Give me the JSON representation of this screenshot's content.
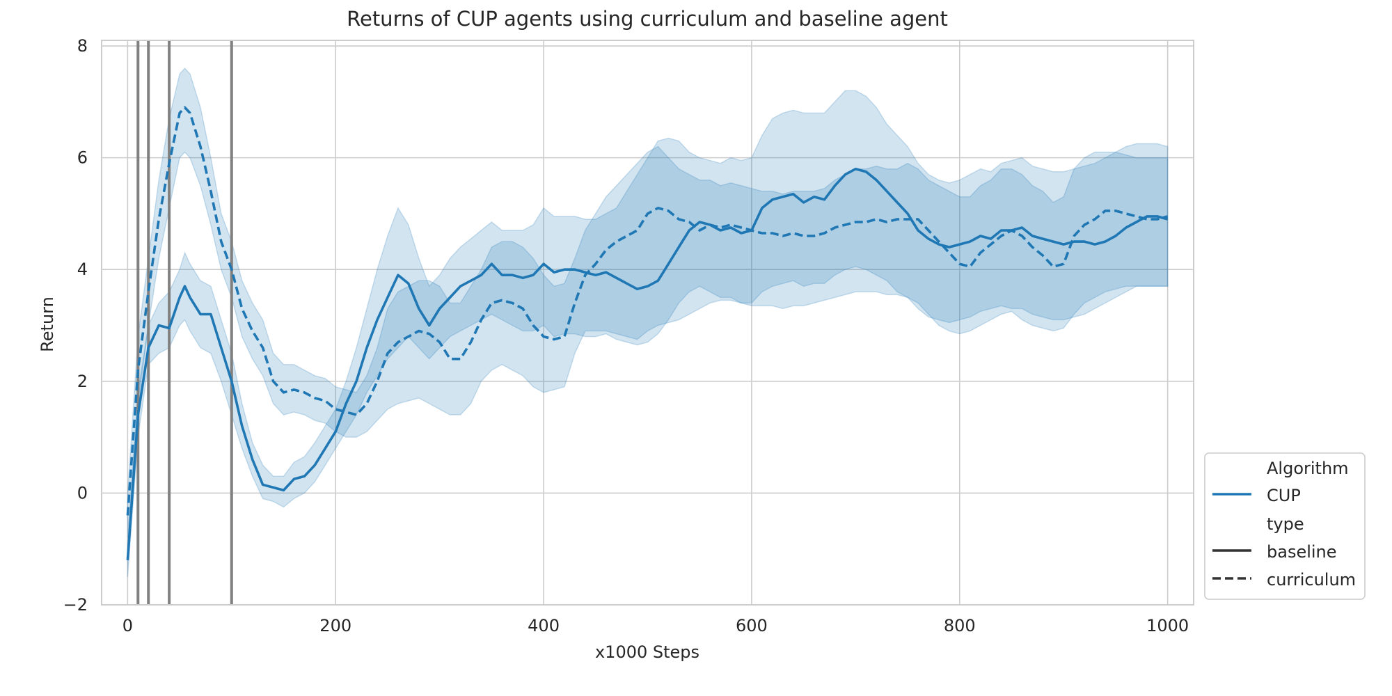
{
  "chart_data": {
    "type": "line",
    "title": "Returns of CUP agents using curriculum and baseline agent",
    "xlabel": "x1000 Steps",
    "ylabel": "Return",
    "xlim": [
      -25,
      1025
    ],
    "ylim": [
      -2,
      8.1
    ],
    "xticks": [
      0,
      200,
      400,
      600,
      800,
      1000
    ],
    "yticks": [
      -2,
      0,
      2,
      4,
      6,
      8
    ],
    "grid": true,
    "legend_placement": "lower-right-outside",
    "color": "#1f77b4",
    "curriculum_markers_x": [
      10,
      20,
      40,
      100
    ],
    "legend": {
      "hue_title": "Algorithm",
      "hue_entries": [
        "CUP"
      ],
      "style_title": "type",
      "style_entries": [
        "baseline",
        "curriculum"
      ]
    },
    "series": [
      {
        "name": "baseline",
        "line_style": "solid",
        "x": [
          0,
          10,
          20,
          30,
          40,
          50,
          55,
          60,
          70,
          80,
          90,
          100,
          110,
          120,
          130,
          140,
          150,
          160,
          170,
          180,
          190,
          200,
          210,
          220,
          230,
          240,
          250,
          260,
          270,
          280,
          290,
          300,
          310,
          320,
          330,
          340,
          350,
          360,
          370,
          380,
          390,
          400,
          410,
          420,
          430,
          440,
          450,
          460,
          470,
          480,
          490,
          500,
          510,
          520,
          530,
          540,
          550,
          560,
          570,
          580,
          590,
          600,
          610,
          620,
          630,
          640,
          650,
          660,
          670,
          680,
          690,
          700,
          710,
          720,
          730,
          740,
          750,
          760,
          770,
          780,
          790,
          800,
          810,
          820,
          830,
          840,
          850,
          860,
          870,
          880,
          890,
          900,
          910,
          920,
          930,
          940,
          950,
          960,
          970,
          980,
          990,
          1000
        ],
        "y": [
          -1.2,
          1.4,
          2.6,
          3.0,
          2.95,
          3.5,
          3.7,
          3.5,
          3.2,
          3.2,
          2.6,
          2.0,
          1.2,
          0.6,
          0.15,
          0.1,
          0.05,
          0.25,
          0.3,
          0.5,
          0.8,
          1.1,
          1.6,
          2.0,
          2.6,
          3.1,
          3.5,
          3.9,
          3.75,
          3.3,
          3.0,
          3.3,
          3.5,
          3.7,
          3.8,
          3.9,
          4.1,
          3.9,
          3.9,
          3.85,
          3.9,
          4.1,
          3.95,
          4.0,
          4.0,
          3.95,
          3.9,
          3.95,
          3.85,
          3.75,
          3.65,
          3.7,
          3.8,
          4.1,
          4.4,
          4.7,
          4.85,
          4.8,
          4.7,
          4.75,
          4.65,
          4.7,
          5.1,
          5.25,
          5.3,
          5.35,
          5.2,
          5.3,
          5.25,
          5.5,
          5.7,
          5.8,
          5.75,
          5.6,
          5.4,
          5.2,
          5.0,
          4.7,
          4.55,
          4.45,
          4.4,
          4.45,
          4.5,
          4.6,
          4.55,
          4.7,
          4.7,
          4.75,
          4.6,
          4.55,
          4.5,
          4.45,
          4.5,
          4.5,
          4.45,
          4.5,
          4.6,
          4.75,
          4.85,
          4.95,
          4.95,
          4.9
        ],
        "band_lower": [
          -1.5,
          1.0,
          2.3,
          2.5,
          2.6,
          3.0,
          3.1,
          2.9,
          2.6,
          2.5,
          2.0,
          1.4,
          0.8,
          0.3,
          -0.1,
          -0.15,
          -0.25,
          -0.1,
          0.0,
          0.2,
          0.5,
          0.8,
          1.1,
          1.4,
          1.8,
          2.1,
          2.4,
          2.6,
          2.8,
          2.6,
          2.4,
          2.6,
          2.8,
          2.9,
          3.0,
          3.1,
          3.2,
          3.1,
          3.0,
          2.9,
          2.9,
          3.0,
          2.8,
          2.85,
          2.85,
          2.8,
          2.8,
          2.85,
          2.75,
          2.7,
          2.65,
          2.7,
          2.85,
          3.1,
          3.4,
          3.6,
          3.7,
          3.6,
          3.5,
          3.5,
          3.4,
          3.4,
          3.6,
          3.7,
          3.75,
          3.8,
          3.7,
          3.75,
          3.75,
          3.9,
          4.0,
          4.05,
          4.0,
          3.9,
          3.8,
          3.6,
          3.5,
          3.3,
          3.15,
          3.1,
          3.05,
          3.1,
          3.15,
          3.25,
          3.3,
          3.35,
          3.3,
          3.3,
          3.2,
          3.15,
          3.1,
          3.1,
          3.15,
          3.2,
          3.3,
          3.4,
          3.5,
          3.6,
          3.7,
          3.7,
          3.7,
          3.7
        ],
        "band_upper": [
          -0.9,
          1.8,
          3.0,
          3.4,
          3.6,
          4.0,
          4.3,
          4.1,
          3.8,
          3.7,
          3.1,
          2.5,
          1.6,
          0.9,
          0.5,
          0.3,
          0.3,
          0.55,
          0.65,
          0.9,
          1.2,
          1.5,
          2.0,
          2.6,
          3.3,
          4.0,
          4.6,
          5.1,
          4.8,
          4.2,
          3.7,
          3.9,
          4.2,
          4.4,
          4.55,
          4.7,
          4.85,
          4.7,
          4.7,
          4.7,
          4.8,
          5.1,
          4.95,
          4.95,
          4.95,
          4.9,
          4.9,
          5.0,
          5.1,
          5.4,
          5.7,
          6.0,
          6.3,
          6.35,
          6.3,
          6.1,
          6.0,
          5.95,
          5.9,
          6.0,
          5.95,
          6.0,
          6.4,
          6.7,
          6.8,
          6.85,
          6.8,
          6.8,
          6.8,
          7.0,
          7.2,
          7.2,
          7.1,
          6.9,
          6.6,
          6.4,
          6.2,
          5.9,
          5.7,
          5.6,
          5.55,
          5.6,
          5.7,
          5.8,
          5.75,
          5.9,
          5.95,
          6.0,
          5.85,
          5.8,
          5.75,
          5.75,
          5.8,
          5.85,
          5.9,
          6.0,
          6.1,
          6.2,
          6.25,
          6.25,
          6.25,
          6.2
        ]
      },
      {
        "name": "curriculum",
        "line_style": "dashed",
        "x": [
          0,
          10,
          20,
          30,
          40,
          50,
          55,
          60,
          70,
          80,
          90,
          100,
          110,
          120,
          130,
          140,
          150,
          160,
          170,
          180,
          190,
          200,
          210,
          220,
          230,
          240,
          250,
          260,
          270,
          280,
          290,
          300,
          310,
          320,
          330,
          340,
          350,
          360,
          370,
          380,
          390,
          400,
          410,
          420,
          430,
          440,
          450,
          460,
          470,
          480,
          490,
          500,
          510,
          520,
          530,
          540,
          550,
          560,
          570,
          580,
          590,
          600,
          610,
          620,
          630,
          640,
          650,
          660,
          670,
          680,
          690,
          700,
          710,
          720,
          730,
          740,
          750,
          760,
          770,
          780,
          790,
          800,
          810,
          820,
          830,
          840,
          850,
          860,
          870,
          880,
          890,
          900,
          910,
          920,
          930,
          940,
          950,
          960,
          970,
          980,
          990,
          1000
        ],
        "y": [
          -0.4,
          2.2,
          3.6,
          4.9,
          5.9,
          6.8,
          6.9,
          6.8,
          6.2,
          5.4,
          4.5,
          4.0,
          3.3,
          2.9,
          2.6,
          2.0,
          1.8,
          1.85,
          1.8,
          1.7,
          1.65,
          1.5,
          1.45,
          1.4,
          1.6,
          2.0,
          2.5,
          2.7,
          2.8,
          2.9,
          2.85,
          2.7,
          2.4,
          2.4,
          2.7,
          3.1,
          3.4,
          3.45,
          3.4,
          3.3,
          3.0,
          2.8,
          2.75,
          2.8,
          3.4,
          3.9,
          4.1,
          4.35,
          4.5,
          4.6,
          4.7,
          5.0,
          5.1,
          5.05,
          4.9,
          4.85,
          4.7,
          4.8,
          4.75,
          4.8,
          4.75,
          4.7,
          4.65,
          4.65,
          4.6,
          4.65,
          4.6,
          4.6,
          4.65,
          4.75,
          4.8,
          4.85,
          4.85,
          4.9,
          4.85,
          4.9,
          4.9,
          4.9,
          4.7,
          4.5,
          4.3,
          4.1,
          4.05,
          4.3,
          4.45,
          4.6,
          4.7,
          4.6,
          4.4,
          4.25,
          4.05,
          4.1,
          4.6,
          4.8,
          4.9,
          5.05,
          5.05,
          5.0,
          4.95,
          4.9,
          4.9,
          4.95
        ],
        "band_lower": [
          -0.8,
          1.6,
          3.0,
          4.2,
          5.1,
          6.0,
          6.1,
          6.0,
          5.5,
          4.8,
          4.0,
          3.5,
          2.8,
          2.4,
          2.1,
          1.6,
          1.4,
          1.45,
          1.4,
          1.3,
          1.25,
          1.1,
          1.0,
          1.0,
          1.1,
          1.3,
          1.5,
          1.6,
          1.65,
          1.7,
          1.6,
          1.5,
          1.4,
          1.4,
          1.6,
          2.0,
          2.2,
          2.3,
          2.2,
          2.1,
          1.9,
          1.8,
          1.85,
          1.9,
          2.5,
          2.9,
          2.9,
          2.9,
          2.85,
          2.8,
          2.75,
          2.9,
          3.0,
          3.05,
          3.1,
          3.2,
          3.3,
          3.4,
          3.45,
          3.45,
          3.4,
          3.35,
          3.35,
          3.35,
          3.3,
          3.35,
          3.35,
          3.4,
          3.45,
          3.5,
          3.55,
          3.6,
          3.6,
          3.6,
          3.55,
          3.55,
          3.5,
          3.4,
          3.2,
          3.0,
          2.9,
          2.85,
          2.9,
          3.0,
          3.1,
          3.2,
          3.25,
          3.1,
          3.0,
          2.95,
          2.9,
          2.95,
          3.2,
          3.4,
          3.5,
          3.6,
          3.65,
          3.7,
          3.7,
          3.7,
          3.7,
          3.7
        ],
        "band_upper": [
          0.0,
          2.8,
          4.2,
          5.6,
          6.7,
          7.5,
          7.6,
          7.5,
          6.9,
          6.0,
          5.0,
          4.5,
          3.8,
          3.4,
          3.1,
          2.5,
          2.3,
          2.3,
          2.2,
          2.1,
          2.05,
          1.9,
          1.85,
          1.8,
          2.1,
          2.6,
          3.3,
          3.6,
          3.7,
          3.8,
          3.8,
          3.7,
          3.4,
          3.4,
          3.7,
          4.0,
          4.4,
          4.5,
          4.5,
          4.4,
          4.2,
          3.9,
          3.7,
          3.75,
          4.2,
          4.7,
          5.0,
          5.3,
          5.5,
          5.7,
          5.9,
          6.1,
          6.2,
          6.0,
          5.8,
          5.7,
          5.6,
          5.6,
          5.5,
          5.55,
          5.5,
          5.45,
          5.4,
          5.4,
          5.35,
          5.4,
          5.4,
          5.4,
          5.45,
          5.6,
          5.7,
          5.8,
          5.8,
          5.85,
          5.8,
          5.8,
          5.9,
          5.8,
          5.6,
          5.5,
          5.4,
          5.3,
          5.3,
          5.5,
          5.6,
          5.8,
          5.8,
          5.7,
          5.5,
          5.4,
          5.2,
          5.3,
          5.8,
          6.0,
          6.1,
          6.1,
          6.1,
          6.05,
          6.0,
          6.0,
          6.0,
          6.0
        ]
      }
    ]
  }
}
